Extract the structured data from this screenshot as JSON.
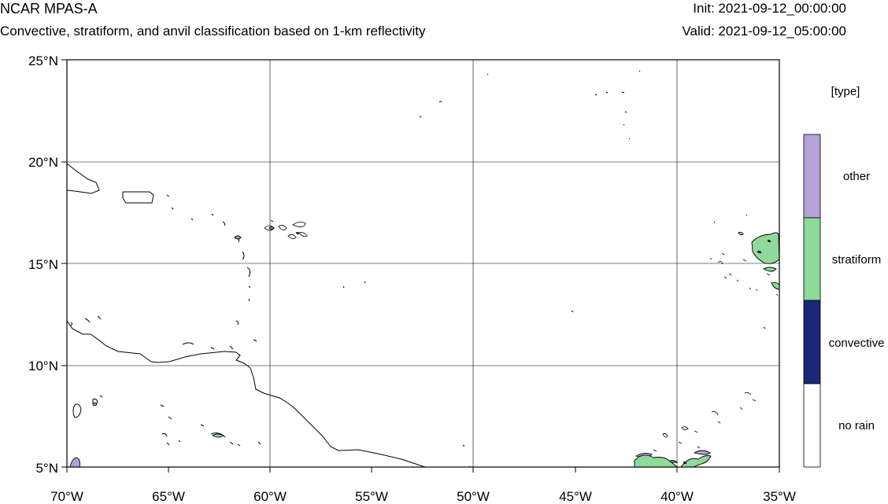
{
  "header": {
    "title": "NCAR MPAS-A",
    "subtitle": "Convective, stratiform, and anvil classification based on 1-km reflectivity",
    "init": "Init: 2021-09-12_00:00:00",
    "valid": "Valid: 2021-09-12_05:00:00"
  },
  "axes": {
    "lat_labels": [
      "25°N",
      "20°N",
      "15°N",
      "10°N",
      "5°N"
    ],
    "lon_labels": [
      "70°W",
      "65°W",
      "60°W",
      "55°W",
      "50°W",
      "45°W",
      "40°W",
      "35°W"
    ]
  },
  "legend": {
    "title": "[type]",
    "items": [
      {
        "label": "other",
        "color": "#b3a3d9"
      },
      {
        "label": "stratiform",
        "color": "#8fd99a"
      },
      {
        "label": "convective",
        "color": "#1c2778"
      },
      {
        "label": "no rain",
        "color": "#ffffff"
      }
    ]
  }
}
